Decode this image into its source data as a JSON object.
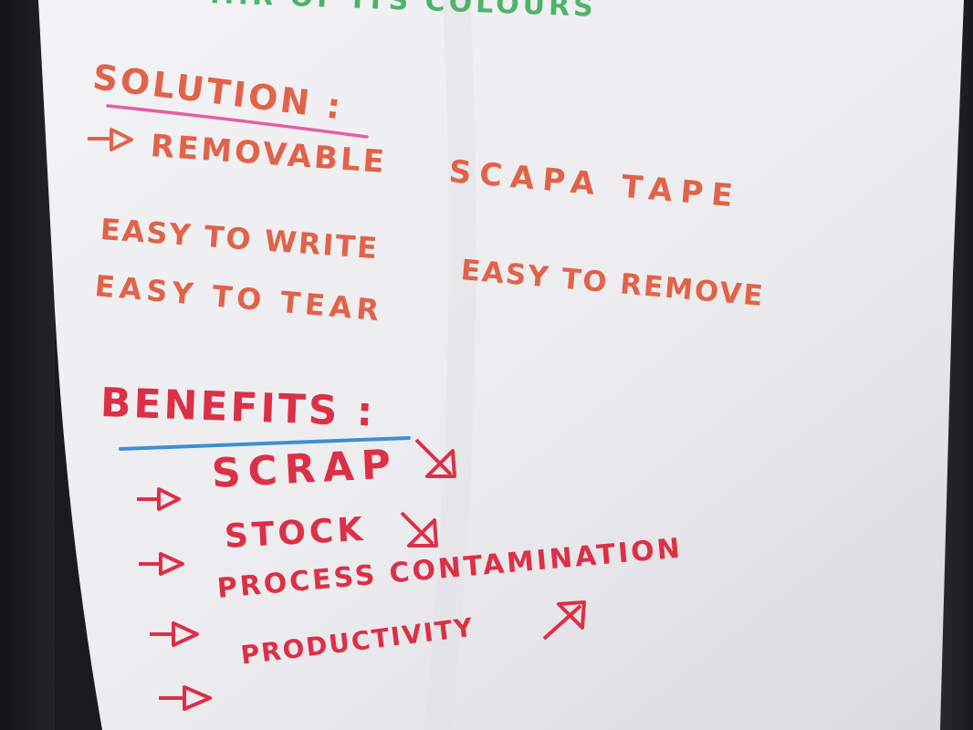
{
  "top_fragment": "...r of its colours",
  "solution": {
    "heading": "Solution :",
    "items": [
      "Removable",
      "Scapa tape",
      "Easy to write",
      "Easy to tear",
      "Easy to remove"
    ]
  },
  "benefits": {
    "heading": "Benefits :",
    "items": [
      "Scrap",
      "Stock",
      "Process contamination",
      "Productivity"
    ],
    "trend_icons": [
      "arrow-down-right-icon",
      "arrow-down-right-icon",
      "arrow-up-right-icon"
    ]
  },
  "colors": {
    "solution_ink": "#e0634a",
    "benefits_ink": "#dc3046",
    "top_ink": "#4fb36a",
    "solution_underline": "#e55ea4",
    "benefits_underline": "#3f8fd0",
    "paper": "#eeeef0"
  }
}
